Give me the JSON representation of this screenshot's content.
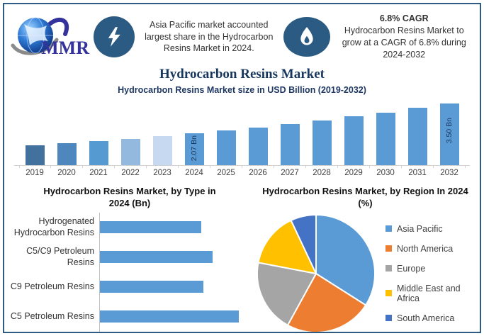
{
  "page": {
    "title": "Hydrocarbon Resins Market",
    "border_color": "#2E5B84",
    "navy": "#17375E"
  },
  "header": {
    "logo_text": "MMR",
    "callout_share": {
      "icon": "lightning-icon",
      "icon_bg": "#2B5B82",
      "text": "Asia Pacific market accounted largest share in the Hydrocarbon Resins Market in 2024."
    },
    "callout_cagr": {
      "icon": "flame-icon",
      "icon_bg": "#2B5B82",
      "title": "6.8% CAGR",
      "text": "Hydrocarbon Resins Market to grow at a CAGR of 6.8% during 2024-2032"
    }
  },
  "chart_data": [
    {
      "type": "bar",
      "title": "Hydrocarbon Resins Market size in USD Billion (2019-2032)",
      "categories": [
        "2019",
        "2020",
        "2021",
        "2022",
        "2023",
        "2024",
        "2025",
        "2026",
        "2027",
        "2028",
        "2029",
        "2030",
        "2031",
        "2032"
      ],
      "values": [
        1.49,
        1.59,
        1.7,
        1.81,
        1.94,
        2.07,
        2.21,
        2.36,
        2.52,
        2.69,
        2.88,
        3.07,
        3.28,
        3.5
      ],
      "unit": "USD Billion",
      "bar_colors": [
        "#41719C",
        "#4E87BE",
        "#559BD2",
        "#94B9DE",
        "#C6D9F0",
        "#5B9BD5",
        "#5B9BD5",
        "#5B9BD5",
        "#5B9BD5",
        "#5B9BD5",
        "#5B9BD5",
        "#5B9BD5",
        "#5B9BD5",
        "#5B9BD5"
      ],
      "data_labels": [
        {
          "index": 5,
          "label": "2.07 Bn",
          "offset": 3
        },
        {
          "index": 13,
          "label": "3.50 Bn",
          "offset": 20
        }
      ],
      "grid": false,
      "legend": false
    },
    {
      "type": "bar",
      "orientation": "horizontal",
      "title": "Hydrocarbon Resins Market, by Type in 2024 (Bn)",
      "categories": [
        "Hydrogenated Hydrocarbon Resins",
        "C5/C9 Petroleum Resins",
        "C9 Petroleum Resins",
        "C5 Petroleum Resins"
      ],
      "values": [
        0.46,
        0.51,
        0.47,
        0.63
      ],
      "xlim": [
        0,
        0.7
      ],
      "bar_color": "#5B9BD5",
      "grid": false,
      "legend": false
    },
    {
      "type": "pie",
      "title": "Hydrocarbon Resins Market, by Region In 2024 (%)",
      "labels": [
        "Asia Pacific",
        "North America",
        "Europe",
        "Middle East and Africa",
        "South America"
      ],
      "values": [
        34,
        24,
        20,
        15,
        7
      ],
      "colors": [
        "#5B9BD5",
        "#ED7D31",
        "#A5A5A5",
        "#FFC000",
        "#4472C4"
      ],
      "legend_position": "right",
      "start_angle_deg": 0,
      "direction": "clockwise"
    }
  ]
}
